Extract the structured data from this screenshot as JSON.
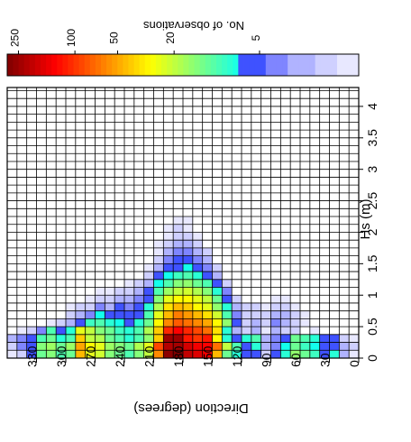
{
  "chart_data": {
    "type": "heatmap",
    "title": "",
    "orientation": "image-rotated-90deg-clockwise",
    "xlabel": "Hs (m)",
    "ylabel": "Direction (degrees)",
    "x_ticks": [
      "0",
      "0.5",
      "1",
      "1.5",
      "2",
      "2.5",
      "3",
      "3.5",
      "4"
    ],
    "y_ticks": [
      "0",
      "30",
      "60",
      "90",
      "120",
      "150",
      "180",
      "210",
      "240",
      "270",
      "300",
      "330"
    ],
    "grid": true,
    "x_bins": {
      "min": 0,
      "max": 4.3,
      "step": 0.125,
      "count": 34
    },
    "y_bins": {
      "min": 0,
      "max": 360,
      "step": 10,
      "count": 36
    },
    "colorbar": {
      "label": "No. of observations",
      "ticks": [
        "250",
        "100",
        "50",
        "20",
        "5"
      ],
      "scale": "log",
      "range": [
        1,
        300
      ],
      "colormap": "jet-reversed",
      "position": "top"
    },
    "cells": [
      [
        5,
        10,
        1
      ],
      [
        5,
        20,
        2
      ],
      [
        5,
        30,
        6
      ],
      [
        5,
        40,
        5
      ],
      [
        5,
        50,
        8
      ],
      [
        5,
        60,
        10
      ],
      [
        5,
        70,
        12
      ],
      [
        5,
        80,
        6
      ],
      [
        5,
        90,
        4
      ],
      [
        5,
        100,
        3
      ],
      [
        5,
        110,
        10
      ],
      [
        5,
        120,
        8
      ],
      [
        5,
        130,
        6
      ],
      [
        5,
        140,
        8
      ],
      [
        5,
        150,
        30
      ],
      [
        5,
        160,
        120
      ],
      [
        5,
        170,
        100
      ],
      [
        5,
        180,
        120
      ],
      [
        5,
        190,
        250
      ],
      [
        5,
        200,
        250
      ],
      [
        5,
        210,
        40
      ],
      [
        5,
        220,
        15
      ],
      [
        5,
        230,
        10
      ],
      [
        5,
        240,
        8
      ],
      [
        5,
        250,
        10
      ],
      [
        5,
        260,
        12
      ],
      [
        5,
        270,
        18
      ],
      [
        5,
        280,
        20
      ],
      [
        5,
        290,
        40
      ],
      [
        5,
        300,
        10
      ],
      [
        5,
        310,
        8
      ],
      [
        5,
        320,
        12
      ],
      [
        5,
        330,
        10
      ],
      [
        5,
        340,
        5
      ],
      [
        5,
        350,
        4
      ],
      [
        5,
        360,
        3
      ],
      [
        3,
        10,
        1
      ],
      [
        3,
        20,
        3
      ],
      [
        3,
        30,
        8
      ],
      [
        3,
        40,
        6
      ],
      [
        3,
        50,
        9
      ],
      [
        3,
        60,
        12
      ],
      [
        3,
        70,
        15
      ],
      [
        3,
        80,
        8
      ],
      [
        3,
        90,
        5
      ],
      [
        3,
        100,
        2
      ],
      [
        3,
        110,
        6
      ],
      [
        3,
        120,
        5
      ],
      [
        3,
        130,
        8
      ],
      [
        3,
        140,
        12
      ],
      [
        3,
        150,
        45
      ],
      [
        3,
        160,
        150
      ],
      [
        3,
        170,
        170
      ],
      [
        3,
        180,
        200
      ],
      [
        3,
        190,
        300
      ],
      [
        3,
        200,
        280
      ],
      [
        3,
        210,
        60
      ],
      [
        3,
        220,
        20
      ],
      [
        3,
        230,
        14
      ],
      [
        3,
        240,
        10
      ],
      [
        3,
        250,
        12
      ],
      [
        3,
        260,
        14
      ],
      [
        3,
        270,
        22
      ],
      [
        3,
        280,
        25
      ],
      [
        3,
        290,
        45
      ],
      [
        3,
        300,
        12
      ],
      [
        3,
        310,
        10
      ],
      [
        3,
        320,
        14
      ],
      [
        3,
        330,
        12
      ],
      [
        3,
        340,
        5
      ],
      [
        3,
        350,
        2
      ],
      [
        3,
        360,
        1
      ],
      [
        4,
        10,
        2
      ],
      [
        4,
        20,
        3
      ],
      [
        4,
        30,
        6
      ],
      [
        4,
        40,
        5
      ],
      [
        4,
        50,
        7
      ],
      [
        4,
        60,
        9
      ],
      [
        4,
        70,
        12
      ],
      [
        4,
        80,
        7
      ],
      [
        4,
        90,
        4
      ],
      [
        4,
        100,
        3
      ],
      [
        4,
        110,
        8
      ],
      [
        4,
        120,
        6
      ],
      [
        4,
        130,
        10
      ],
      [
        4,
        140,
        20
      ],
      [
        4,
        150,
        70
      ],
      [
        4,
        160,
        140
      ],
      [
        4,
        170,
        150
      ],
      [
        4,
        180,
        180
      ],
      [
        4,
        190,
        240
      ],
      [
        4,
        200,
        220
      ],
      [
        4,
        210,
        90
      ],
      [
        4,
        220,
        25
      ],
      [
        4,
        230,
        18
      ],
      [
        4,
        240,
        12
      ],
      [
        4,
        250,
        14
      ],
      [
        4,
        260,
        16
      ],
      [
        4,
        270,
        25
      ],
      [
        4,
        280,
        30
      ],
      [
        4,
        290,
        50
      ],
      [
        4,
        300,
        16
      ],
      [
        4,
        310,
        12
      ],
      [
        4,
        320,
        16
      ],
      [
        4,
        330,
        14
      ],
      [
        4,
        340,
        6
      ],
      [
        4,
        350,
        4
      ],
      [
        4,
        360,
        2
      ],
      [
        6,
        50,
        1
      ],
      [
        6,
        70,
        2
      ],
      [
        6,
        80,
        2
      ],
      [
        6,
        90,
        3
      ],
      [
        6,
        100,
        1
      ],
      [
        6,
        110,
        3
      ],
      [
        6,
        120,
        2
      ],
      [
        6,
        130,
        3
      ],
      [
        6,
        140,
        8
      ],
      [
        6,
        150,
        35
      ],
      [
        6,
        160,
        70
      ],
      [
        6,
        170,
        90
      ],
      [
        6,
        180,
        110
      ],
      [
        6,
        190,
        140
      ],
      [
        6,
        200,
        110
      ],
      [
        6,
        210,
        40
      ],
      [
        6,
        220,
        18
      ],
      [
        6,
        230,
        10
      ],
      [
        6,
        240,
        8
      ],
      [
        6,
        250,
        9
      ],
      [
        6,
        260,
        12
      ],
      [
        6,
        270,
        14
      ],
      [
        6,
        280,
        20
      ],
      [
        6,
        290,
        25
      ],
      [
        6,
        300,
        8
      ],
      [
        6,
        310,
        6
      ],
      [
        6,
        320,
        10
      ],
      [
        6,
        330,
        4
      ],
      [
        6,
        340,
        2
      ],
      [
        6,
        350,
        1
      ],
      [
        7,
        60,
        1
      ],
      [
        7,
        70,
        2
      ],
      [
        7,
        80,
        3
      ],
      [
        7,
        90,
        4
      ],
      [
        7,
        100,
        2
      ],
      [
        7,
        110,
        3
      ],
      [
        7,
        120,
        2
      ],
      [
        7,
        130,
        5
      ],
      [
        7,
        140,
        15
      ],
      [
        7,
        150,
        30
      ],
      [
        7,
        160,
        50
      ],
      [
        7,
        170,
        60
      ],
      [
        7,
        180,
        70
      ],
      [
        7,
        190,
        80
      ],
      [
        7,
        200,
        60
      ],
      [
        7,
        210,
        30
      ],
      [
        7,
        220,
        12
      ],
      [
        7,
        230,
        8
      ],
      [
        7,
        240,
        6
      ],
      [
        7,
        250,
        7
      ],
      [
        7,
        260,
        8
      ],
      [
        7,
        270,
        10
      ],
      [
        7,
        280,
        9
      ],
      [
        7,
        290,
        6
      ],
      [
        7,
        300,
        3
      ],
      [
        7,
        310,
        2
      ],
      [
        7,
        320,
        1
      ],
      [
        8,
        60,
        1
      ],
      [
        8,
        70,
        2
      ],
      [
        8,
        80,
        3
      ],
      [
        8,
        90,
        3
      ],
      [
        8,
        100,
        2
      ],
      [
        8,
        110,
        2
      ],
      [
        8,
        120,
        2
      ],
      [
        8,
        130,
        4
      ],
      [
        8,
        140,
        10
      ],
      [
        8,
        150,
        22
      ],
      [
        8,
        160,
        35
      ],
      [
        8,
        170,
        45
      ],
      [
        8,
        180,
        55
      ],
      [
        8,
        190,
        65
      ],
      [
        8,
        200,
        45
      ],
      [
        8,
        210,
        25
      ],
      [
        8,
        220,
        10
      ],
      [
        8,
        230,
        6
      ],
      [
        8,
        240,
        5
      ],
      [
        8,
        250,
        6
      ],
      [
        8,
        260,
        5
      ],
      [
        8,
        270,
        7
      ],
      [
        8,
        280,
        4
      ],
      [
        8,
        290,
        3
      ],
      [
        8,
        300,
        2
      ],
      [
        9,
        70,
        1
      ],
      [
        9,
        80,
        2
      ],
      [
        9,
        90,
        2
      ],
      [
        9,
        100,
        1
      ],
      [
        9,
        110,
        2
      ],
      [
        9,
        120,
        2
      ],
      [
        9,
        130,
        3
      ],
      [
        9,
        140,
        8
      ],
      [
        9,
        150,
        15
      ],
      [
        9,
        160,
        25
      ],
      [
        9,
        170,
        30
      ],
      [
        9,
        180,
        40
      ],
      [
        9,
        190,
        45
      ],
      [
        9,
        200,
        35
      ],
      [
        9,
        210,
        18
      ],
      [
        9,
        220,
        8
      ],
      [
        9,
        230,
        5
      ],
      [
        9,
        240,
        4
      ],
      [
        9,
        250,
        5
      ],
      [
        9,
        260,
        3
      ],
      [
        9,
        270,
        4
      ],
      [
        9,
        280,
        2
      ],
      [
        9,
        290,
        2
      ],
      [
        9,
        300,
        1
      ],
      [
        10,
        80,
        1
      ],
      [
        10,
        90,
        1
      ],
      [
        10,
        130,
        2
      ],
      [
        10,
        140,
        6
      ],
      [
        10,
        150,
        12
      ],
      [
        10,
        160,
        20
      ],
      [
        10,
        170,
        25
      ],
      [
        10,
        180,
        30
      ],
      [
        10,
        190,
        30
      ],
      [
        10,
        200,
        25
      ],
      [
        10,
        210,
        14
      ],
      [
        10,
        220,
        6
      ],
      [
        10,
        230,
        4
      ],
      [
        10,
        240,
        3
      ],
      [
        10,
        250,
        3
      ],
      [
        10,
        260,
        2
      ],
      [
        10,
        270,
        2
      ],
      [
        10,
        280,
        1
      ],
      [
        11,
        140,
        4
      ],
      [
        11,
        150,
        8
      ],
      [
        11,
        160,
        14
      ],
      [
        11,
        170,
        18
      ],
      [
        11,
        180,
        22
      ],
      [
        11,
        190,
        20
      ],
      [
        11,
        200,
        16
      ],
      [
        11,
        210,
        10
      ],
      [
        11,
        220,
        5
      ],
      [
        11,
        230,
        3
      ],
      [
        11,
        240,
        2
      ],
      [
        11,
        250,
        2
      ],
      [
        11,
        260,
        1
      ],
      [
        11,
        270,
        1
      ],
      [
        12,
        140,
        2
      ],
      [
        12,
        150,
        5
      ],
      [
        12,
        160,
        10
      ],
      [
        12,
        170,
        12
      ],
      [
        12,
        180,
        15
      ],
      [
        12,
        190,
        14
      ],
      [
        12,
        200,
        10
      ],
      [
        12,
        210,
        7
      ],
      [
        12,
        220,
        3
      ],
      [
        12,
        230,
        2
      ],
      [
        12,
        240,
        1
      ],
      [
        13,
        150,
        3
      ],
      [
        13,
        160,
        6
      ],
      [
        13,
        170,
        8
      ],
      [
        13,
        180,
        10
      ],
      [
        13,
        190,
        9
      ],
      [
        13,
        200,
        7
      ],
      [
        13,
        210,
        5
      ],
      [
        13,
        220,
        2
      ],
      [
        14,
        150,
        2
      ],
      [
        14,
        160,
        4
      ],
      [
        14,
        170,
        5
      ],
      [
        14,
        180,
        7
      ],
      [
        14,
        190,
        6
      ],
      [
        14,
        200,
        5
      ],
      [
        14,
        210,
        3
      ],
      [
        14,
        220,
        1
      ],
      [
        15,
        160,
        3
      ],
      [
        15,
        170,
        4
      ],
      [
        15,
        180,
        5
      ],
      [
        15,
        190,
        5
      ],
      [
        15,
        200,
        4
      ],
      [
        15,
        210,
        2
      ],
      [
        16,
        160,
        2
      ],
      [
        16,
        170,
        3
      ],
      [
        16,
        180,
        4
      ],
      [
        16,
        190,
        4
      ],
      [
        16,
        200,
        3
      ],
      [
        16,
        210,
        1
      ],
      [
        17,
        170,
        2
      ],
      [
        17,
        180,
        3
      ],
      [
        17,
        190,
        3
      ],
      [
        17,
        200,
        2
      ],
      [
        17,
        210,
        1
      ],
      [
        18,
        170,
        1
      ],
      [
        18,
        180,
        2
      ],
      [
        18,
        190,
        2
      ],
      [
        18,
        200,
        1
      ],
      [
        19,
        180,
        1
      ],
      [
        19,
        190,
        2
      ],
      [
        19,
        200,
        1
      ],
      [
        20,
        180,
        1
      ],
      [
        20,
        190,
        1
      ]
    ]
  }
}
